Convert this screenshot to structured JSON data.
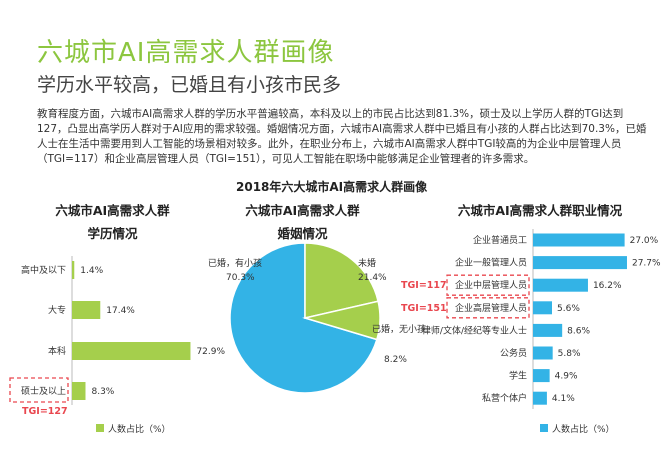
{
  "header": {
    "title": "六城市AI高需求人群画像",
    "subtitle": "学历水平较高，已婚且有小孩市民多",
    "description": "教育程度方面，六城市AI高需求人群的学历水平普遍较高，本科及以上的市民占比达到81.3%，硕士及以上学历人群的TGI达到127，凸显出高学历人群对于AI应用的需求较强。婚姻情况方面，六城市AI高需求人群中已婚且有小孩的人群占比达到70.3%，已婚人士在生活中需要用到人工智能的场景相对较多。此外，在职业分布上，六城市AI高需求人群中TGI较高的为企业中层管理人员（TGI=117）和企业高层管理人员（TGI=151），可见人工智能在职场中能够满足企业管理者的许多需求。"
  },
  "main_title": "2018年六大城市AI高需求人群画像",
  "colors": {
    "accent_green": "#8cc63f",
    "bar_green": "#a5cf4c",
    "pie_blue": "#33b3e6",
    "highlight_red": "#e9474f"
  },
  "chart_data": [
    {
      "type": "bar",
      "orientation": "horizontal",
      "title": "六城市AI高需求人群",
      "subtitle": "学历情况",
      "categories": [
        "高中及以下",
        "大专",
        "本科",
        "硕士及以上"
      ],
      "values": [
        1.4,
        17.4,
        72.9,
        8.3
      ],
      "value_labels": [
        "1.4%",
        "17.4%",
        "72.9%",
        "8.3%"
      ],
      "legend": "人数占比（%）",
      "annotations": [
        {
          "category": "硕士及以上",
          "text": "TGI=127"
        }
      ]
    },
    {
      "type": "pie",
      "title": "六城市AI高需求人群",
      "subtitle": "婚姻情况",
      "slices": [
        {
          "label": "已婚，有小孩",
          "value": 70.3,
          "value_label": "70.3%"
        },
        {
          "label": "未婚",
          "value": 21.4,
          "value_label": "21.4%"
        },
        {
          "label": "已婚，无小孩",
          "value": 8.2,
          "value_label": "8.2%"
        }
      ]
    },
    {
      "type": "bar",
      "orientation": "horizontal",
      "title": "六城市AI高需求人群职业情况",
      "categories": [
        "企业普通员工",
        "企业一般管理人员",
        "企业中层管理人员",
        "企业高层管理人员",
        "律师/文体/经纪等专业人士",
        "公务员",
        "学生",
        "私营个体户"
      ],
      "values": [
        27.0,
        27.7,
        16.2,
        5.6,
        8.6,
        5.8,
        4.9,
        4.1
      ],
      "value_labels": [
        "27.0%",
        "27.7%",
        "16.2%",
        "5.6%",
        "8.6%",
        "5.8%",
        "4.9%",
        "4.1%"
      ],
      "legend": "人数占比（%）",
      "annotations": [
        {
          "category": "企业中层管理人员",
          "text": "TGI=117"
        },
        {
          "category": "企业高层管理人员",
          "text": "TGI=151"
        }
      ]
    }
  ]
}
